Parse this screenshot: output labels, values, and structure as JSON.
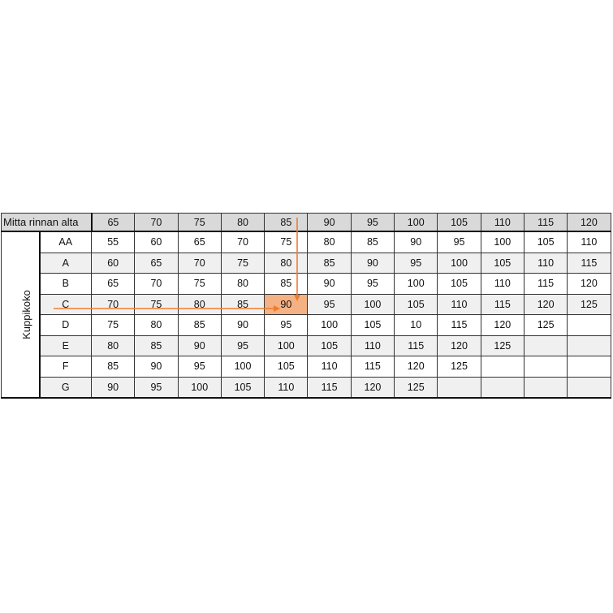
{
  "table": {
    "header_label": "Mitta rinnan alta",
    "side_label": "Kuppikoko",
    "columns": [
      "65",
      "70",
      "75",
      "80",
      "85",
      "90",
      "95",
      "100",
      "105",
      "110",
      "115",
      "120"
    ],
    "rows": [
      {
        "cup": "AA",
        "values": [
          "55",
          "60",
          "65",
          "70",
          "75",
          "80",
          "85",
          "90",
          "95",
          "100",
          "105",
          "110"
        ]
      },
      {
        "cup": "A",
        "values": [
          "60",
          "65",
          "70",
          "75",
          "80",
          "85",
          "90",
          "95",
          "100",
          "105",
          "110",
          "115"
        ]
      },
      {
        "cup": "B",
        "values": [
          "65",
          "70",
          "75",
          "80",
          "85",
          "90",
          "95",
          "100",
          "105",
          "110",
          "115",
          "120"
        ]
      },
      {
        "cup": "C",
        "values": [
          "70",
          "75",
          "80",
          "85",
          "90",
          "95",
          "100",
          "105",
          "110",
          "115",
          "120",
          "125"
        ]
      },
      {
        "cup": "D",
        "values": [
          "75",
          "80",
          "85",
          "90",
          "95",
          "100",
          "105",
          "10",
          "115",
          "120",
          "125",
          ""
        ]
      },
      {
        "cup": "E",
        "values": [
          "80",
          "85",
          "90",
          "95",
          "100",
          "105",
          "110",
          "115",
          "120",
          "125",
          "",
          ""
        ]
      },
      {
        "cup": "F",
        "values": [
          "85",
          "90",
          "95",
          "100",
          "105",
          "110",
          "115",
          "120",
          "125",
          "",
          "",
          ""
        ]
      },
      {
        "cup": "G",
        "values": [
          "90",
          "95",
          "100",
          "105",
          "110",
          "115",
          "120",
          "125",
          "",
          "",
          "",
          ""
        ]
      }
    ],
    "highlight": {
      "row": "C",
      "column": "85",
      "value": "90"
    }
  },
  "colors": {
    "arrow": "#ed7d31",
    "highlight": "#f4b183",
    "header": "#d9d9d9",
    "stripe": "#f0f0f0"
  }
}
